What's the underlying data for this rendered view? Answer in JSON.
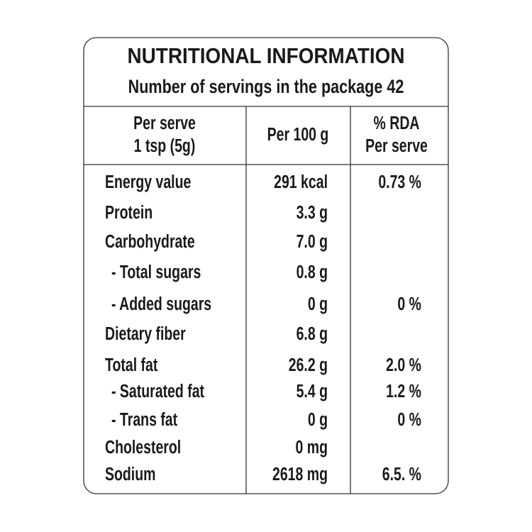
{
  "header": {
    "title": "NUTRITIONAL INFORMATION",
    "subtitle": "Number of servings in the package 42"
  },
  "table": {
    "columns": [
      [
        "Per serve",
        "1 tsp (5g)"
      ],
      [
        "Per 100 g"
      ],
      [
        "% RDA",
        "Per serve"
      ]
    ],
    "rows": [
      [
        "Energy value",
        "291 kcal",
        "0.73 %"
      ],
      [
        "Protein",
        "3.3 g",
        null
      ],
      [
        "Carbohydrate",
        "7.0 g",
        null
      ],
      [
        "- Total sugars",
        "0.8 g",
        null
      ],
      [
        "- Added sugars",
        "0 g",
        "0 %"
      ],
      [
        "Dietary fiber",
        "6.8 g",
        null
      ],
      [
        "Total fat",
        "26.2 g",
        "2.0 %"
      ],
      [
        "- Saturated fat",
        "5.4 g",
        "1.2 %"
      ],
      [
        "- Trans fat",
        "0 g",
        "0 %"
      ],
      [
        "Cholesterol",
        "0 mg",
        null
      ],
      [
        "Sodium",
        "2618 mg",
        "6.5. %"
      ]
    ]
  }
}
